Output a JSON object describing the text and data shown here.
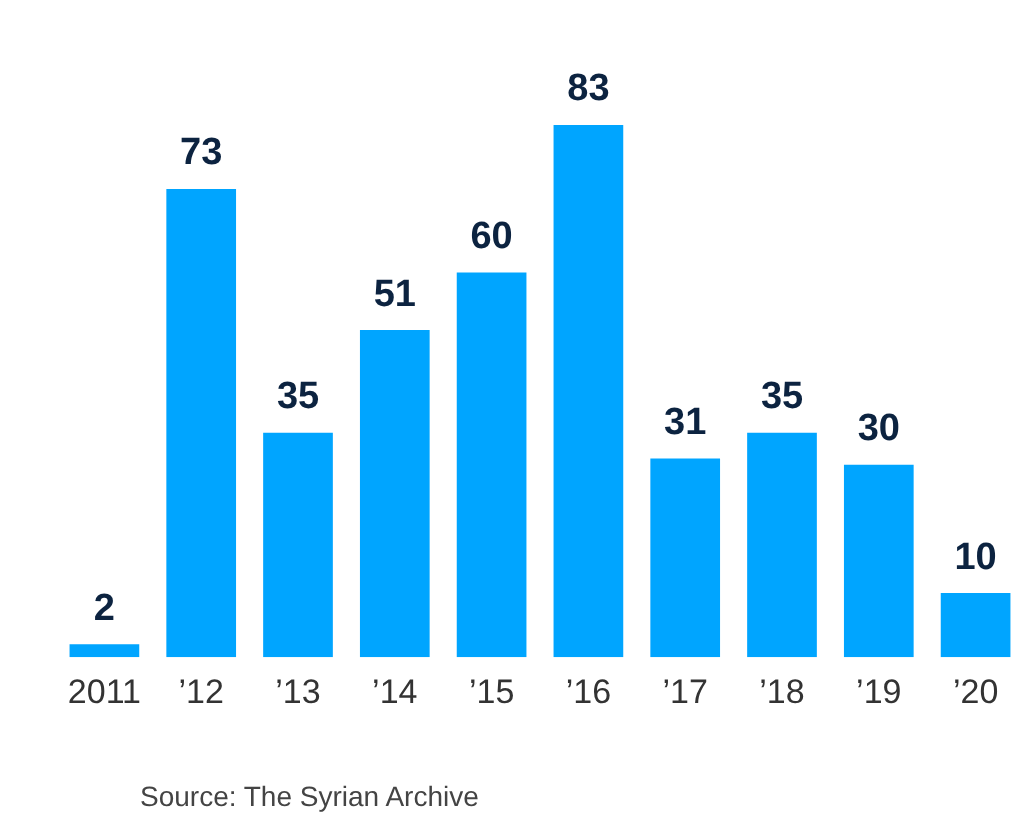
{
  "chart_data": {
    "type": "bar",
    "categories": [
      "2011",
      "’12",
      "’13",
      "’14",
      "’15",
      "’16",
      "’17",
      "’18",
      "’19",
      "’20"
    ],
    "values": [
      2,
      73,
      35,
      51,
      60,
      83,
      31,
      35,
      30,
      10
    ],
    "color": "#00a5ff",
    "data_labels": true,
    "grid": false,
    "legend": false,
    "annotations": [
      "Source: The Syrian Archive"
    ]
  }
}
